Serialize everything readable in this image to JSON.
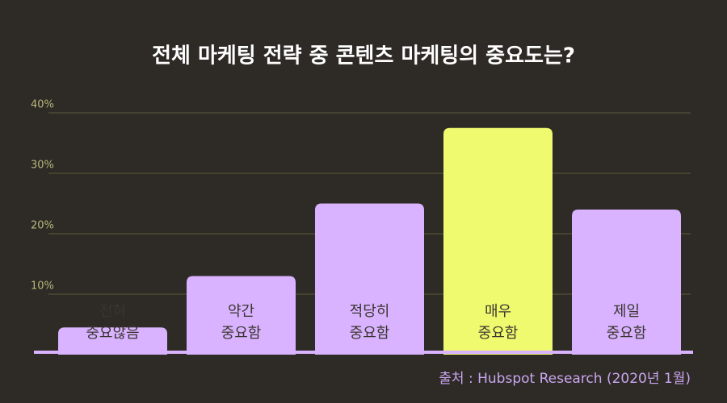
{
  "chart_data": {
    "type": "bar",
    "title": "전체 마케팅 전략 중 콘텐츠 마케팅의 중요도는?",
    "categories": [
      [
        "전혀",
        "중요않음"
      ],
      [
        "약간",
        "중요함"
      ],
      [
        "적당히",
        "중요함"
      ],
      [
        "매우",
        "중요함"
      ],
      [
        "제일",
        "중요함"
      ]
    ],
    "values": [
      4.5,
      13,
      25,
      37.5,
      24
    ],
    "colors": [
      "#d9b3ff",
      "#d9b3ff",
      "#d9b3ff",
      "#f0fa6e",
      "#d9b3ff"
    ],
    "ylim": [
      0,
      40
    ],
    "yticks": [
      {
        "value": 10,
        "label": "10%"
      },
      {
        "value": 20,
        "label": "20%"
      },
      {
        "value": 30,
        "label": "30%"
      },
      {
        "value": 40,
        "label": "40%"
      }
    ],
    "grid": true,
    "source": "출처 : Hubspot Research (2020년 1월)"
  }
}
